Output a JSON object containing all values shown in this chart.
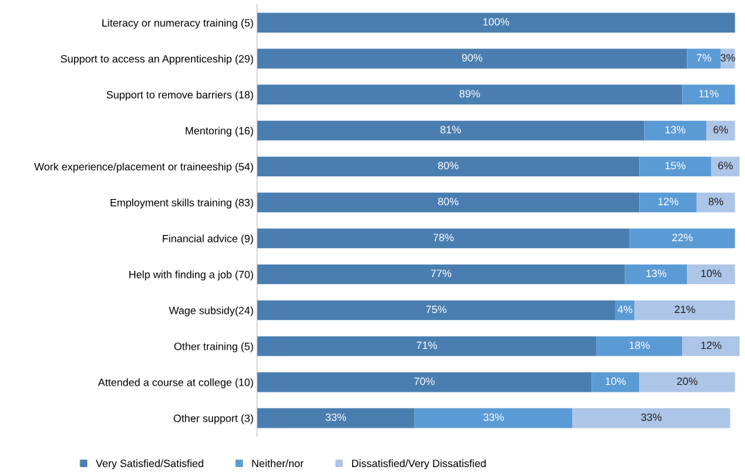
{
  "chart_data": {
    "type": "bar",
    "orientation": "horizontal",
    "stacked": true,
    "legend": "bottom",
    "grid": false,
    "categories": [
      "Literacy or numeracy training (5)",
      "Support to access an Apprenticeship (29)",
      "Support to remove barriers (18)",
      "Mentoring (16)",
      "Work experience/placement or traineeship (54)",
      "Employment skills training (83)",
      "Financial advice (9)",
      "Help with finding a job (70)",
      "Wage subsidy(24)",
      "Other training (5)",
      "Attended a course at college (10)",
      "Other support (3)"
    ],
    "series": [
      {
        "name": "Very Satisfied/Satisfied",
        "color": "#4a7eb0",
        "values": [
          100,
          90,
          89,
          81,
          80,
          80,
          78,
          77,
          75,
          71,
          70,
          33
        ],
        "value_labels": [
          "100%",
          "90%",
          "89%",
          "81%",
          "80%",
          "80%",
          "78%",
          "77%",
          "75%",
          "71%",
          "70%",
          "33%"
        ]
      },
      {
        "name": "Neither/nor",
        "color": "#5b9bd5",
        "values": [
          null,
          7,
          11,
          13,
          15,
          12,
          22,
          13,
          4,
          18,
          10,
          33
        ],
        "value_labels": [
          null,
          "7%",
          "11%",
          "13%",
          "15%",
          "12%",
          "22%",
          "13%",
          "4%",
          "18%",
          "10%",
          "33%"
        ]
      },
      {
        "name": "Dissatisfied/Very Dissatisfied",
        "color": "#adc5e6",
        "values": [
          null,
          3,
          null,
          6,
          6,
          8,
          null,
          10,
          21,
          12,
          20,
          33
        ],
        "value_labels": [
          null,
          "3%",
          null,
          "6%",
          "6%",
          "8%",
          null,
          "10%",
          "21%",
          "12%",
          "20%",
          "33%"
        ]
      }
    ]
  }
}
